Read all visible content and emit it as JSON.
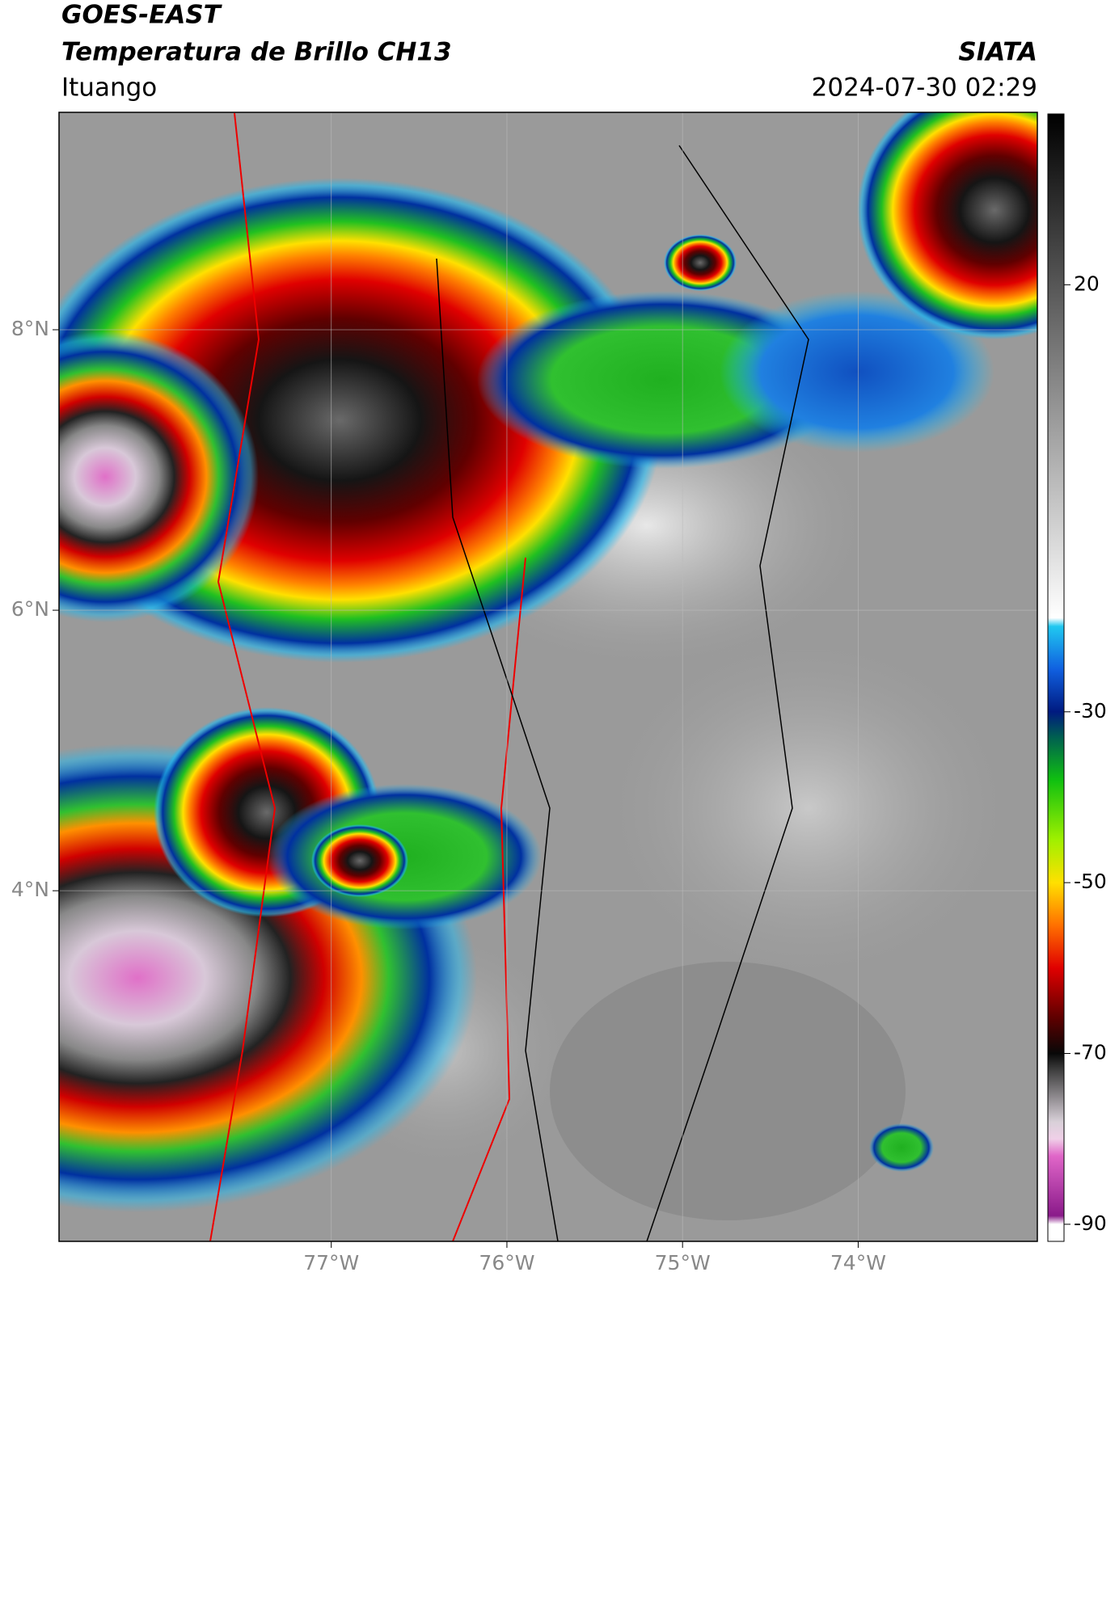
{
  "header": {
    "title": "GOES-EAST",
    "subtitle": "Temperatura de Brillo CH13",
    "brand": "SIATA",
    "place": "Ituango",
    "datetime": "2024-07-30 02:29"
  },
  "chart_data": {
    "type": "map",
    "xlim": [
      -78.55,
      -72.98
    ],
    "ylim": [
      1.5,
      9.55
    ],
    "xticks": [
      {
        "value": -77,
        "label": "77°W"
      },
      {
        "value": -76,
        "label": "76°W"
      },
      {
        "value": -75,
        "label": "75°W"
      },
      {
        "value": -74,
        "label": "74°W"
      }
    ],
    "yticks": [
      {
        "value": 8,
        "label": "8°N"
      },
      {
        "value": 6,
        "label": "6°N"
      },
      {
        "value": 4,
        "label": "4°N"
      }
    ],
    "grid": true,
    "colorbar": {
      "lim": [
        -92,
        40
      ],
      "ticks": [
        20,
        -30,
        -50,
        -70,
        -90
      ],
      "stops": [
        {
          "value": -92,
          "color": "#ffffff"
        },
        {
          "value": -90,
          "color": "#ffffff"
        },
        {
          "value": -89,
          "color": "#8a1a8a"
        },
        {
          "value": -82,
          "color": "#e066c8"
        },
        {
          "value": -80,
          "color": "#f0d0e8"
        },
        {
          "value": -78,
          "color": "#d8d0d8"
        },
        {
          "value": -72,
          "color": "#404040"
        },
        {
          "value": -70,
          "color": "#080808"
        },
        {
          "value": -66,
          "color": "#5a0000"
        },
        {
          "value": -60,
          "color": "#e00000"
        },
        {
          "value": -55,
          "color": "#ff7000"
        },
        {
          "value": -50,
          "color": "#ffe000"
        },
        {
          "value": -45,
          "color": "#a0f000"
        },
        {
          "value": -38,
          "color": "#10c010"
        },
        {
          "value": -33,
          "color": "#006050"
        },
        {
          "value": -30,
          "color": "#001a80"
        },
        {
          "value": -25,
          "color": "#1060e0"
        },
        {
          "value": -20,
          "color": "#20c8f0"
        },
        {
          "value": -19,
          "color": "#ffffff"
        },
        {
          "value": 40,
          "color": "#000000"
        }
      ]
    }
  }
}
